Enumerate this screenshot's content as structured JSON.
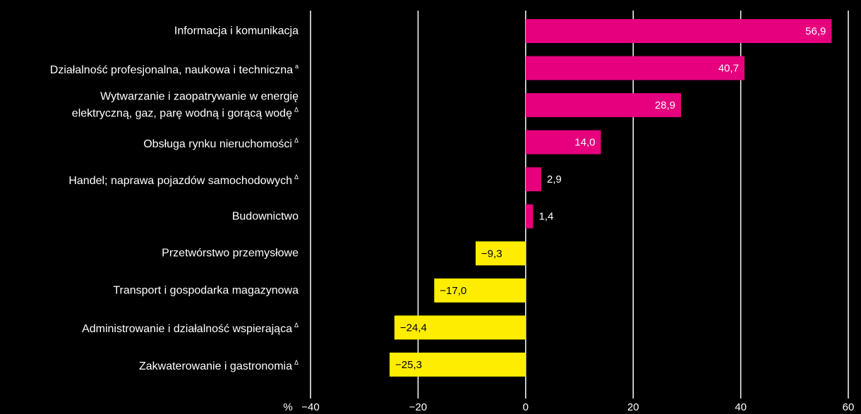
{
  "chart_data": {
    "type": "bar",
    "orientation": "horizontal",
    "categories": [
      "Informacja i komunikacja",
      "Działalność profesjonalna, naukowa i techniczna",
      "Wytwarzanie i zaopatrywanie w energię\nelektryczną, gaz, parę wodną i gorącą wodę",
      "Obsługa rynku nieruchomości",
      "Handel; naprawa pojazdów samochodowych",
      "Budownictwo",
      "Przetwórstwo przemysłowe",
      "Transport i gospodarka magazynowa",
      "Administrowanie i działalność wspierająca",
      "Zakwaterowanie i gastronomia"
    ],
    "category_notes": [
      null,
      "a",
      "Δ",
      "Δ",
      "Δ",
      null,
      null,
      null,
      "Δ",
      "Δ"
    ],
    "values": [
      56.9,
      40.7,
      28.9,
      14.0,
      2.9,
      1.4,
      -9.3,
      -17.0,
      -24.4,
      -25.3
    ],
    "value_labels": [
      "56,9",
      "40,7",
      "28,9",
      "14,0",
      "2,9",
      "1,4",
      "−9,3",
      "−17,0",
      "−24,4",
      "−25,3"
    ],
    "colors": [
      "#e6007e",
      "#e6007e",
      "#e6007e",
      "#e6007e",
      "#e6007e",
      "#e6007e",
      "#ffed00",
      "#ffed00",
      "#ffed00",
      "#ffed00"
    ],
    "x_label": "%",
    "xlim": [
      -40,
      60
    ],
    "xticks": [
      {
        "value": -40,
        "label": "−40"
      },
      {
        "value": -20,
        "label": "−20"
      },
      0,
      20,
      40,
      60
    ],
    "grid": true
  }
}
